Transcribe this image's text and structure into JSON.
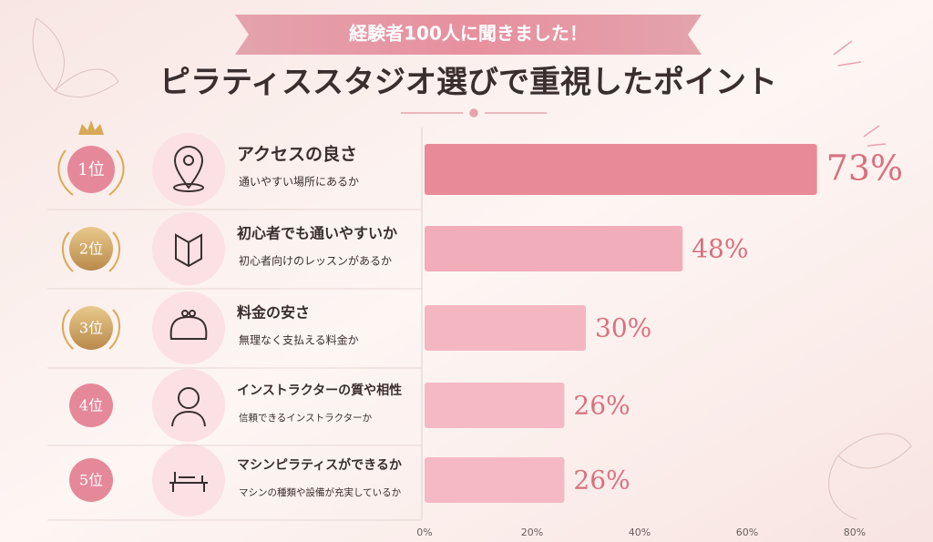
{
  "chart_data": {
    "type": "bar",
    "orientation": "horizontal",
    "subtitle": "経験者100人に聞きました！",
    "title": "ピラティススタジオ選びで重視したポイント",
    "ranks": [
      "1位",
      "2位",
      "3位",
      "4位",
      "5位"
    ],
    "categories": [
      "アクセスの良さ",
      "初心者でも通いやすいか",
      "料金の安さ",
      "インストラクターの質や相性",
      "マシンピラティスができるか"
    ],
    "descriptions": [
      "通いやすい場所にあるか",
      "初心者向けのレッスンがあるか",
      "無理なく支払える料金か",
      "信頼できるインストラクターか",
      "マシンの種類や設備が充実しているか"
    ],
    "values": [
      73,
      48,
      30,
      26,
      26
    ],
    "value_labels": [
      "73%",
      "48%",
      "30%",
      "26%",
      "26%"
    ],
    "colors": [
      "#e98a98",
      "#f2adba",
      "#f4b7c2",
      "#f4b9c4",
      "#f4b9c4"
    ],
    "xlim": [
      0,
      80
    ],
    "xticks": [
      {
        "value": 0,
        "label": "0%"
      },
      {
        "value": 20,
        "label": "20%"
      },
      {
        "value": 40,
        "label": "40%"
      },
      {
        "value": 60,
        "label": "60%"
      },
      {
        "value": 80,
        "label": "80%"
      }
    ]
  }
}
